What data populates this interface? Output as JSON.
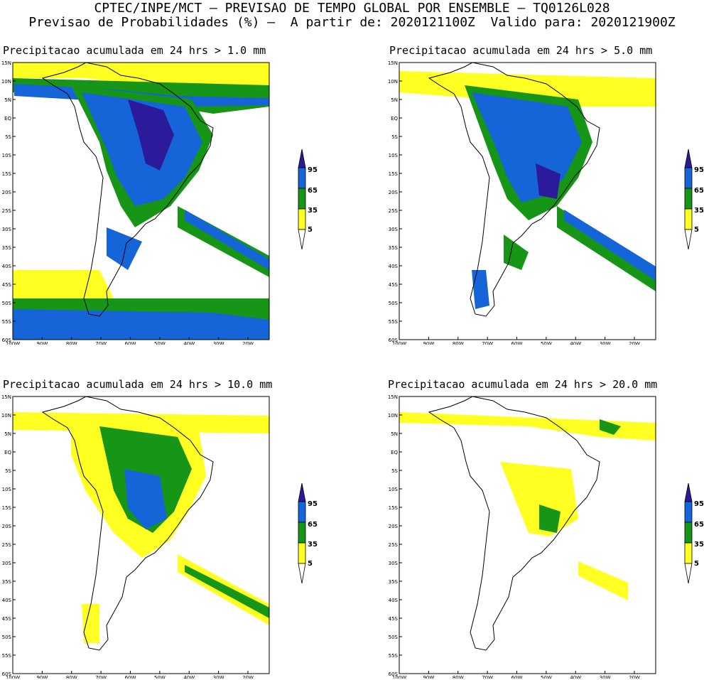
{
  "header": {
    "line1": "CPTEC/INPE/MCT – PREVISAO DE TEMPO GLOBAL POR ENSEMBLE – TQ0126L028",
    "line2": "Previsao de Probabilidades (%) –  A partir de: 2020121100Z  Valido para: 2020121900Z"
  },
  "panels": [
    {
      "title": "Precipitacao acumulada em 24 hrs > 1.0 mm"
    },
    {
      "title": "Precipitacao acumulada em 24 hrs > 5.0 mm"
    },
    {
      "title": "Precipitacao acumulada em 24 hrs > 10.0 mm"
    },
    {
      "title": "Precipitacao acumulada em 24 hrs > 20.0 mm"
    }
  ],
  "lat_labels": [
    "15N",
    "10N",
    "5N",
    "EQ",
    "5S",
    "10S",
    "15S",
    "20S",
    "25S",
    "30S",
    "35S",
    "40S",
    "45S",
    "50S",
    "55S",
    "60S"
  ],
  "lon_labels": [
    "100W",
    "90W",
    "80W",
    "70W",
    "60W",
    "50W",
    "40W",
    "30W",
    "20W"
  ],
  "colorbar": {
    "labels": [
      "95",
      "65",
      "35",
      "5"
    ],
    "colors": {
      "c95": "#2b1b9a",
      "c65": "#1565d8",
      "c35": "#169516",
      "c5": "#ffff22"
    }
  }
}
